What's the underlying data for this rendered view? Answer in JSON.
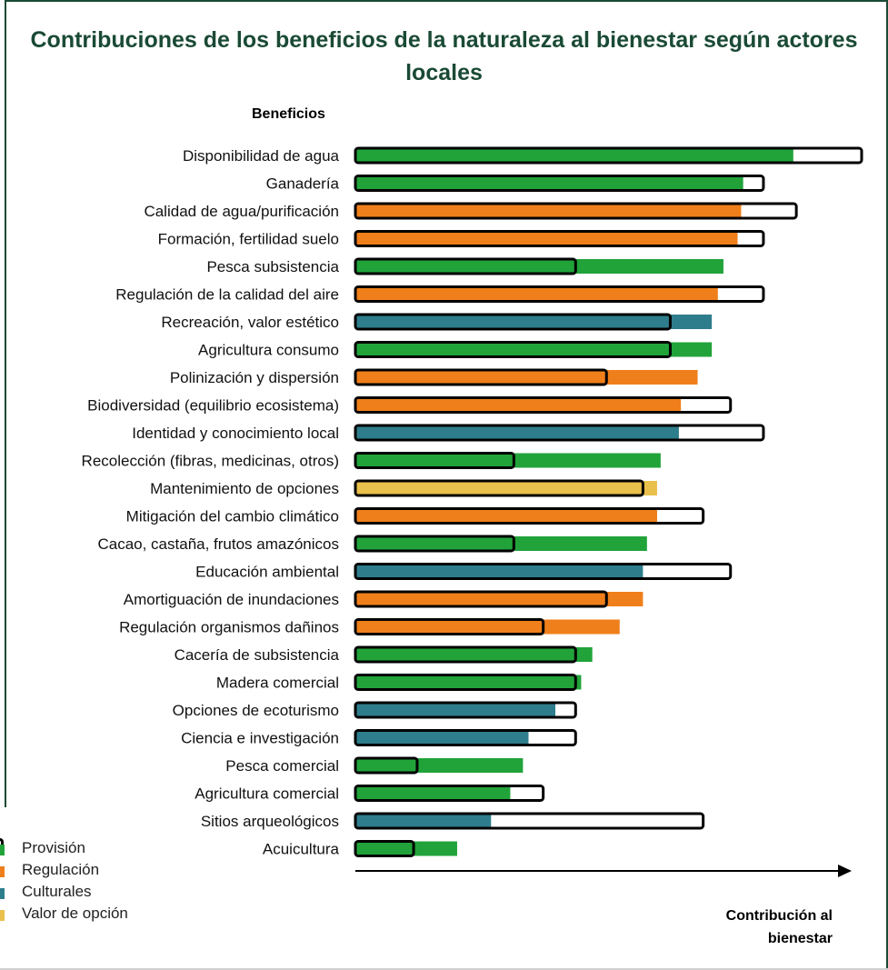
{
  "title": "Contribuciones de los beneficios de la naturaleza al bienestar según actores locales",
  "legend": {
    "items": [
      {
        "label": "Provisión",
        "color": "#21a33a"
      },
      {
        "label": "Regulación",
        "color": "#ef7f1a"
      },
      {
        "label": "Culturales",
        "color": "#2e7d8c"
      },
      {
        "label": "Valor de opción",
        "color": "#e9c04b"
      }
    ]
  },
  "chart_data": {
    "type": "bar",
    "orientation": "horizontal",
    "xlabel": "Contribución al bienestar",
    "ylabel": "Beneficios",
    "xlim": [
      0,
      100
    ],
    "grid": false,
    "legend_placement": "bottom-left",
    "value_units": "relative (percent of maximum; axis has no numeric ticks)",
    "categories": [
      "Disponibilidad de agua",
      "Ganadería",
      "Calidad de agua/purificación",
      "Formación, fertilidad suelo",
      "Pesca subsistencia",
      "Regulación de la calidad del aire",
      "Recreación, valor estético",
      "Agricultura consumo",
      "Polinización y dispersión",
      "Biodiversidad (equilibrio ecosistema)",
      "Identidad y conocimiento local",
      "Recolección (fibras, medicinas, otros)",
      "Mantenimiento de opciones",
      "Mitigación del cambio climático",
      "Cacao, castaña, frutos amazónicos",
      "Educación ambiental",
      "Amortiguación de inundaciones",
      "Regulación organismos dañinos",
      "Cacería de subsistencia",
      "Madera comercial",
      "Opciones de ecoturismo",
      "Ciencia e investigación",
      "Pesca comercial",
      "Agricultura comercial",
      "Sitios arqueológicos",
      "Acuicultura"
    ],
    "groups": [
      "Provisión",
      "Provisión",
      "Regulación",
      "Regulación",
      "Provisión",
      "Regulación",
      "Culturales",
      "Provisión",
      "Regulación",
      "Regulación",
      "Culturales",
      "Provisión",
      "Valor de opción",
      "Regulación",
      "Provisión",
      "Culturales",
      "Regulación",
      "Regulación",
      "Provisión",
      "Provisión",
      "Culturales",
      "Culturales",
      "Provisión",
      "Provisión",
      "Culturales",
      "Acuicultura"
    ],
    "series": [
      {
        "values": [
          86.5,
          76.6,
          76.2,
          75.5,
          72.7,
          71.6,
          70.4,
          70.4,
          67.6,
          64.3,
          63.9,
          60.3,
          59.6,
          59.6,
          57.6,
          56.8,
          56.8,
          52.2,
          46.8,
          44.6,
          39.5,
          34.2,
          33.1,
          30.6,
          26.8,
          20.1
        ]
      },
      {
        "values": [
          100,
          80.6,
          87.1,
          80.6,
          43.5,
          80.6,
          62.2,
          62.2,
          49.6,
          74.1,
          80.6,
          31.3,
          56.8,
          68.7,
          31.3,
          74.1,
          49.6,
          37.1,
          43.5,
          43.5,
          43.5,
          43.5,
          12.2,
          37.1,
          68.7,
          11.5
        ]
      }
    ]
  }
}
